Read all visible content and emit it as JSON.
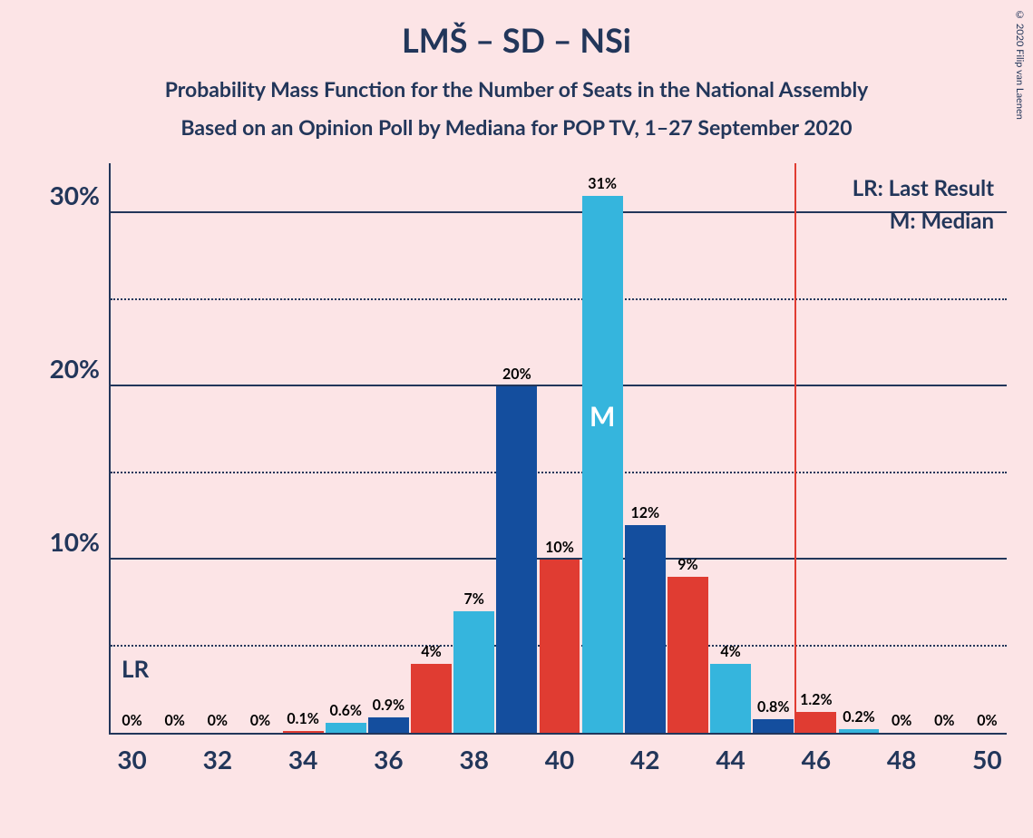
{
  "title": "LMŠ – SD – NSi",
  "subtitle1": "Probability Mass Function for the Number of Seats in the National Assembly",
  "subtitle2": "Based on an Opinion Poll by Mediana for POP TV, 1–27 September 2020",
  "copyright": "© 2020 Filip van Laenen",
  "legend": {
    "lr": "LR: Last Result",
    "m": "M: Median"
  },
  "chart": {
    "type": "bar",
    "background_color": "#fce4e6",
    "y_max": 33,
    "y_major_ticks": [
      10,
      20,
      30
    ],
    "y_minor_ticks": [
      5,
      15,
      25
    ],
    "y_tick_labels": [
      "10%",
      "20%",
      "30%"
    ],
    "x_min": 29.5,
    "x_max": 50.5,
    "x_tick_positions": [
      30,
      32,
      34,
      36,
      38,
      40,
      42,
      44,
      46,
      48,
      50
    ],
    "x_tick_labels": [
      "30",
      "32",
      "34",
      "36",
      "38",
      "40",
      "42",
      "44",
      "46",
      "48",
      "50"
    ],
    "bar_width": 0.95,
    "colors": {
      "a": "#e03c32",
      "b": "#144e9e",
      "c": "#35b5dd",
      "axis": "#22365a",
      "lr_line": "#e03c32"
    },
    "bars": [
      {
        "x": 30,
        "v": 0,
        "label": "0%",
        "c": "b"
      },
      {
        "x": 31,
        "v": 0,
        "label": "0%",
        "c": "a"
      },
      {
        "x": 32,
        "v": 0,
        "label": "0%",
        "c": "c"
      },
      {
        "x": 33,
        "v": 0,
        "label": "0%",
        "c": "b"
      },
      {
        "x": 34,
        "v": 0.1,
        "label": "0.1%",
        "c": "a"
      },
      {
        "x": 35,
        "v": 0.6,
        "label": "0.6%",
        "c": "c"
      },
      {
        "x": 36,
        "v": 0.9,
        "label": "0.9%",
        "c": "b"
      },
      {
        "x": 37,
        "v": 4,
        "label": "4%",
        "c": "a"
      },
      {
        "x": 38,
        "v": 7,
        "label": "7%",
        "c": "c"
      },
      {
        "x": 39,
        "v": 20,
        "label": "20%",
        "c": "b"
      },
      {
        "x": 40,
        "v": 10,
        "label": "10%",
        "c": "a"
      },
      {
        "x": 41,
        "v": 31,
        "label": "31%",
        "c": "c",
        "median": true
      },
      {
        "x": 42,
        "v": 12,
        "label": "12%",
        "c": "b"
      },
      {
        "x": 43,
        "v": 9,
        "label": "9%",
        "c": "a"
      },
      {
        "x": 44,
        "v": 4,
        "label": "4%",
        "c": "c"
      },
      {
        "x": 45,
        "v": 0.8,
        "label": "0.8%",
        "c": "b"
      },
      {
        "x": 46,
        "v": 1.2,
        "label": "1.2%",
        "c": "a"
      },
      {
        "x": 47,
        "v": 0.2,
        "label": "0.2%",
        "c": "c"
      },
      {
        "x": 48,
        "v": 0,
        "label": "0%",
        "c": "b"
      },
      {
        "x": 49,
        "v": 0,
        "label": "0%",
        "c": "a"
      },
      {
        "x": 50,
        "v": 0,
        "label": "0%",
        "c": "c"
      }
    ],
    "lr_line_x": 45.5,
    "lr_label": "LR",
    "m_label": "M"
  }
}
